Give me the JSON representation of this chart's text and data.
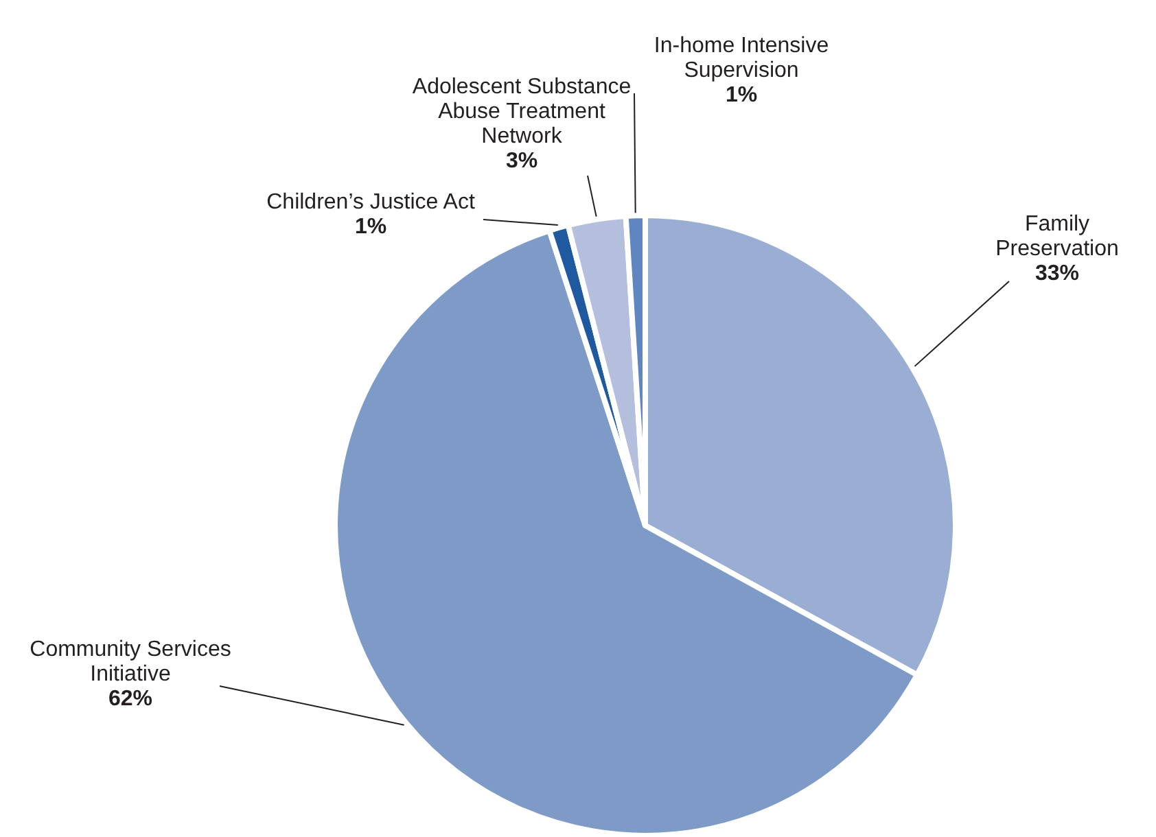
{
  "chart_data": {
    "type": "pie",
    "categories": [
      "Family Preservation",
      "Community Services Initiative",
      "Children’s Justice Act",
      "Adolescent Substance Abuse Treatment Network",
      "In-home Intensive Supervision"
    ],
    "values": [
      33,
      62,
      1,
      3,
      1
    ],
    "colors": [
      "#9aaed4",
      "#7e9bc8",
      "#1f5aa0",
      "#b3bfdd",
      "#5f86c0"
    ],
    "value_labels": [
      "33%",
      "62%",
      "1%",
      "3%",
      "1%"
    ]
  }
}
